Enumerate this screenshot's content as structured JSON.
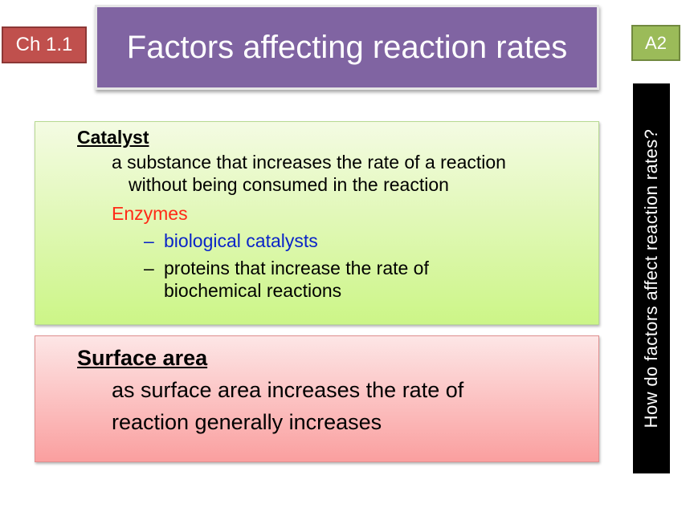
{
  "chapter_badge": "Ch 1.1",
  "title": "Factors affecting reaction rates",
  "level_badge": "A2",
  "side_question": "How do factors affect reaction rates?",
  "catalyst": {
    "heading": "Catalyst",
    "definition_line1": "a substance that increases the rate of a reaction",
    "definition_line2": "without being consumed in the reaction",
    "enzymes_label": "Enzymes",
    "bullet_dash": "–",
    "enzymes_point1": "biological catalysts",
    "enzymes_point2_line1": "proteins that increase the rate of",
    "enzymes_point2_line2": "biochemical reactions"
  },
  "surface_area": {
    "heading": "Surface area",
    "text_line1": "as surface area increases the rate of",
    "text_line2": "reaction generally increases"
  },
  "colors": {
    "chapter_badge": "#c0504d",
    "title_bar": "#8064a2",
    "level_badge": "#9bbb59",
    "side_bar": "#000000",
    "enzymes_label": "#ff2a16",
    "biological_catalysts": "#0a24c8"
  }
}
